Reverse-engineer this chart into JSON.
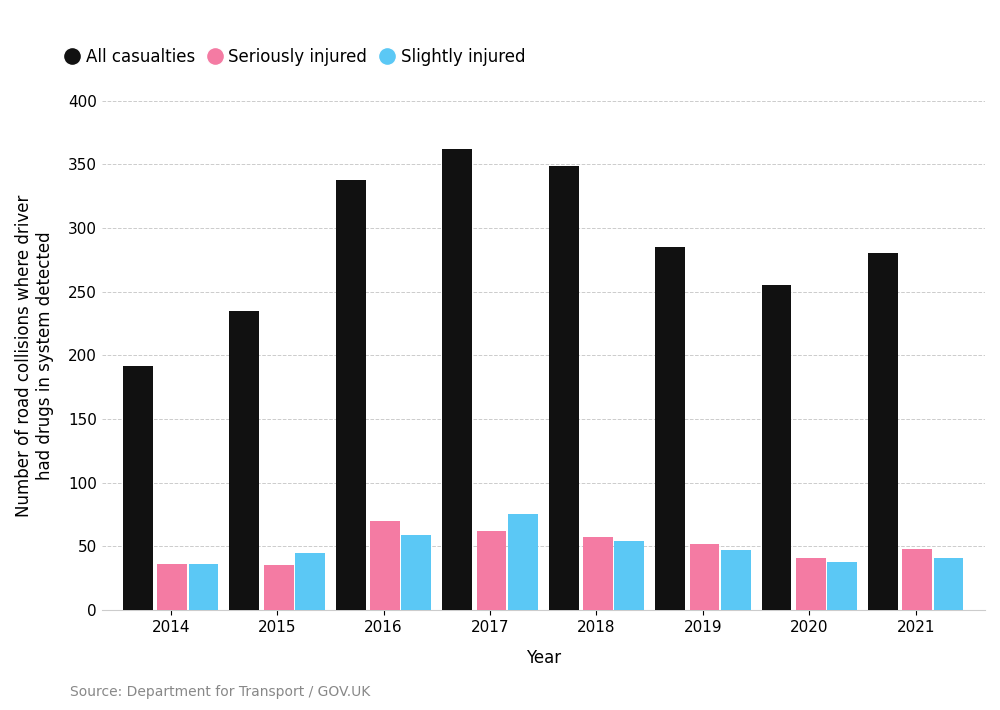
{
  "years": [
    2014,
    2015,
    2016,
    2017,
    2018,
    2019,
    2020,
    2021
  ],
  "all_casualties": [
    192,
    235,
    338,
    362,
    349,
    285,
    255,
    280
  ],
  "seriously_injured": [
    36,
    35,
    70,
    62,
    57,
    52,
    41,
    48
  ],
  "slightly_injured": [
    36,
    45,
    59,
    75,
    54,
    47,
    38,
    41
  ],
  "color_all": "#111111",
  "color_serious": "#F47BA3",
  "color_slight": "#5BC8F5",
  "background_color": "#ffffff",
  "ylabel": "Number of road collisions where driver\nhad drugs in system detected",
  "xlabel": "Year",
  "source_text": "Source: Department for Transport / GOV.UK",
  "ylim": [
    0,
    400
  ],
  "yticks": [
    0,
    50,
    100,
    150,
    200,
    250,
    300,
    350,
    400
  ],
  "legend_labels": [
    "All casualties",
    "Seriously injured",
    "Slightly injured"
  ],
  "bar_width": 0.28,
  "axis_fontsize": 12,
  "legend_fontsize": 12,
  "tick_fontsize": 11,
  "source_fontsize": 10
}
